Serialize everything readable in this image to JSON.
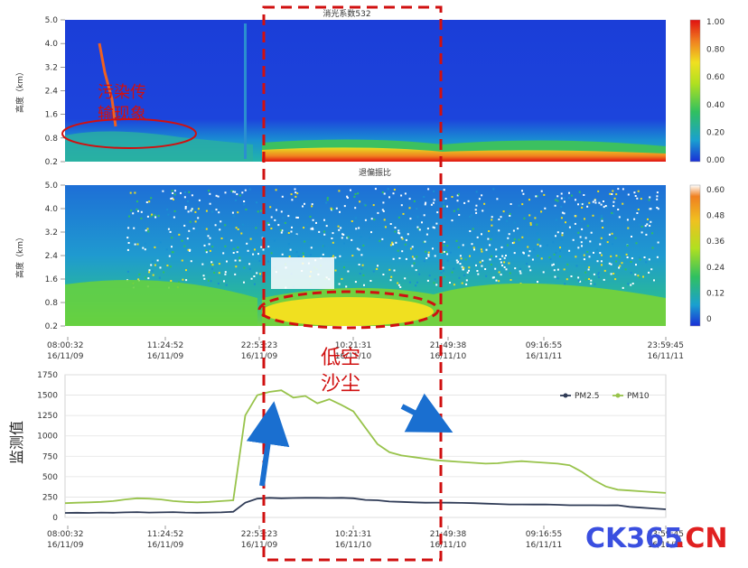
{
  "chart_data": [
    {
      "type": "heatmap",
      "title": "消光系数532",
      "ylabel": "高度（km）",
      "y_ticks": [
        "5.0",
        "4.0",
        "3.2",
        "2.4",
        "1.6",
        "0.8",
        "0.2"
      ],
      "colorbar_ticks": [
        "1.00",
        "0.80",
        "0.60",
        "0.40",
        "0.20",
        "0.00"
      ],
      "annotation": "污染传输现象"
    },
    {
      "type": "heatmap",
      "title": "退偏振比",
      "ylabel": "高度（km）",
      "y_ticks": [
        "5.0",
        "4.0",
        "3.2",
        "2.4",
        "1.6",
        "0.8",
        "0.2"
      ],
      "colorbar_ticks": [
        "0.60",
        "0.48",
        "0.36",
        "0.24",
        "0.12",
        "0"
      ],
      "x_ticks": [
        {
          "time": "08:00:32",
          "date": "16/11/09"
        },
        {
          "time": "11:24:52",
          "date": "16/11/09"
        },
        {
          "time": "22:53:23",
          "date": "16/11/09"
        },
        {
          "time": "10:21:31",
          "date": "16/11/10"
        },
        {
          "time": "21:49:38",
          "date": "16/11/10"
        },
        {
          "time": "09:16:55",
          "date": "16/11/11"
        },
        {
          "time": "23:59:45",
          "date": "16/11/11"
        }
      ]
    },
    {
      "type": "line",
      "ylabel": "监测值",
      "ylim": [
        0,
        1750
      ],
      "y_ticks": [
        0,
        250,
        500,
        750,
        1000,
        1250,
        1500,
        1750
      ],
      "x_ticks": [
        {
          "time": "08:00:32",
          "date": "16/11/09"
        },
        {
          "time": "11:24:52",
          "date": "16/11/09"
        },
        {
          "time": "22:53:23",
          "date": "16/11/09"
        },
        {
          "time": "10:21:31",
          "date": "16/11/10"
        },
        {
          "time": "21:49:38",
          "date": "16/11/10"
        },
        {
          "time": "09:16:55",
          "date": "16/11/11"
        },
        {
          "time": "23:59:45",
          "date": "16/11/11"
        }
      ],
      "x": [
        0,
        2,
        4,
        6,
        8,
        10,
        12,
        14,
        16,
        18,
        20,
        22,
        24,
        26,
        28,
        30,
        32,
        34,
        36,
        38,
        40,
        42,
        44,
        46,
        48,
        50,
        52,
        54,
        56,
        58,
        60,
        62,
        64,
        66,
        68,
        70,
        72,
        74,
        76,
        78,
        80,
        82,
        84,
        86,
        88,
        90,
        92,
        94,
        96,
        98,
        100
      ],
      "series": [
        {
          "name": "PM2.5",
          "color": "#2f3b56",
          "values": [
            55,
            58,
            55,
            60,
            58,
            62,
            65,
            60,
            62,
            65,
            60,
            58,
            60,
            62,
            70,
            180,
            230,
            240,
            235,
            238,
            240,
            240,
            238,
            240,
            235,
            215,
            210,
            195,
            190,
            185,
            180,
            182,
            180,
            178,
            175,
            170,
            165,
            160,
            160,
            158,
            160,
            155,
            150,
            150,
            150,
            148,
            150,
            130,
            120,
            110,
            100
          ]
        },
        {
          "name": "PM10",
          "color": "#98c34b",
          "values": [
            175,
            180,
            185,
            190,
            200,
            220,
            235,
            230,
            220,
            200,
            190,
            185,
            190,
            200,
            210,
            1250,
            1500,
            1540,
            1560,
            1470,
            1490,
            1400,
            1450,
            1380,
            1300,
            1100,
            900,
            800,
            760,
            740,
            720,
            700,
            690,
            680,
            670,
            660,
            665,
            680,
            690,
            680,
            670,
            660,
            640,
            560,
            460,
            380,
            340,
            330,
            320,
            310,
            300
          ]
        }
      ],
      "legend_position": "top-right"
    }
  ],
  "annotations": {
    "low_dust": "低空\n沙尘",
    "pollution": "污染传输现象"
  },
  "watermark": {
    "text_blue": "CK365",
    "text_red": ".CN"
  }
}
